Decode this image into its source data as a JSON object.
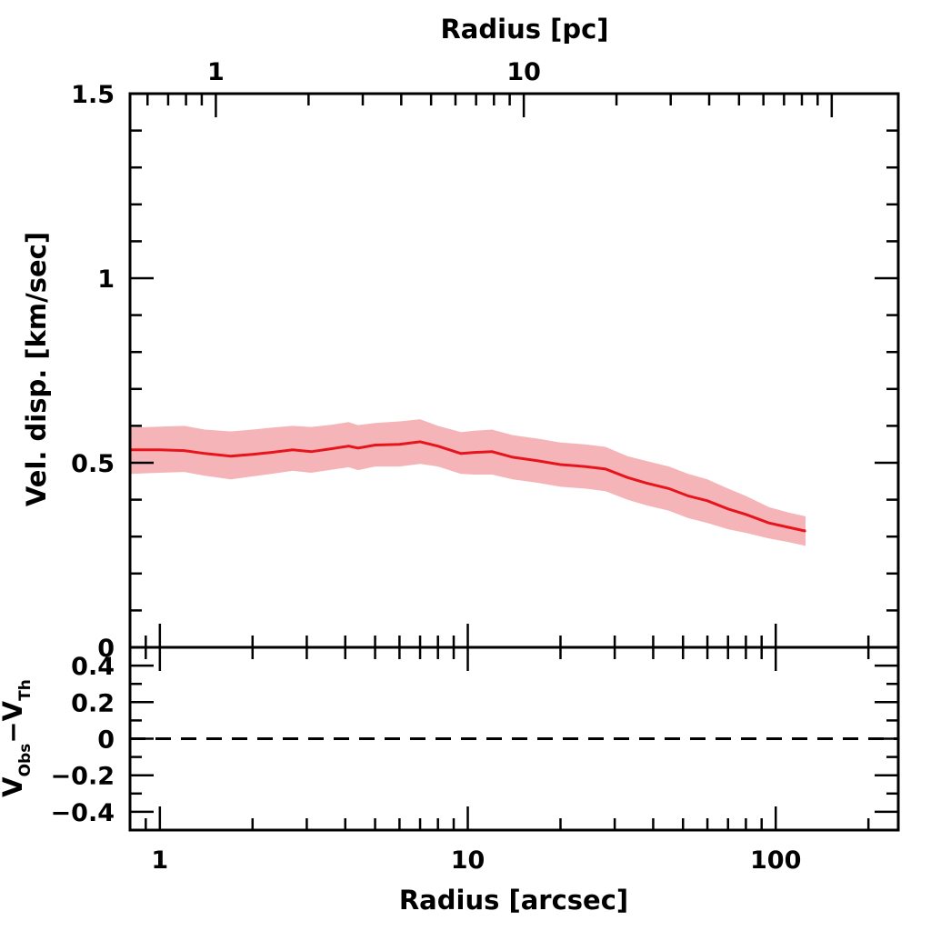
{
  "chart_data": {
    "type": "line",
    "x_scale": "log",
    "top_panel": {
      "xlabel_bottom": "Radius [arcsec]",
      "xlabel_top": "Radius [pc]",
      "ylabel": "Vel. disp. [km/sec]",
      "xlim": [
        0.8,
        250
      ],
      "ylim": [
        0,
        1.5
      ],
      "y_ticks": [
        0,
        0.5,
        1,
        1.5
      ],
      "y_tick_labels": [
        "0",
        "0.5",
        "1",
        "1.5"
      ],
      "top_x_ticks_pc": [
        1,
        10
      ],
      "top_x_tick_labels": [
        "1",
        "10"
      ],
      "top_x_tick_arcsec": [
        1.52,
        15.2
      ],
      "series": [
        {
          "line_color": "#e8141c",
          "band_color": "#f5b5b8",
          "x": [
            0.8,
            1.0,
            1.2,
            1.4,
            1.7,
            2.0,
            2.3,
            2.7,
            3.1,
            3.6,
            4.1,
            4.4,
            5.0,
            6.0,
            7.0,
            8.0,
            9.5,
            10.5,
            12.0,
            14.0,
            17.0,
            20.0,
            24.0,
            28.0,
            33.0,
            38.0,
            45.0,
            52.0,
            60.0,
            70.0,
            80.0,
            95.0,
            110.0,
            125.0
          ],
          "y": [
            0.535,
            0.535,
            0.533,
            0.525,
            0.518,
            0.523,
            0.528,
            0.535,
            0.53,
            0.538,
            0.545,
            0.54,
            0.548,
            0.55,
            0.557,
            0.545,
            0.525,
            0.528,
            0.53,
            0.515,
            0.505,
            0.495,
            0.49,
            0.483,
            0.46,
            0.445,
            0.43,
            0.41,
            0.397,
            0.375,
            0.36,
            0.337,
            0.325,
            0.315
          ],
          "y_upper": [
            0.595,
            0.598,
            0.6,
            0.59,
            0.585,
            0.59,
            0.595,
            0.6,
            0.597,
            0.603,
            0.61,
            0.602,
            0.608,
            0.612,
            0.618,
            0.6,
            0.583,
            0.587,
            0.59,
            0.575,
            0.565,
            0.555,
            0.55,
            0.543,
            0.518,
            0.505,
            0.49,
            0.47,
            0.455,
            0.43,
            0.41,
            0.38,
            0.365,
            0.355
          ],
          "y_lower": [
            0.47,
            0.473,
            0.475,
            0.465,
            0.455,
            0.463,
            0.47,
            0.478,
            0.473,
            0.481,
            0.488,
            0.48,
            0.49,
            0.49,
            0.497,
            0.49,
            0.47,
            0.468,
            0.468,
            0.455,
            0.445,
            0.435,
            0.43,
            0.423,
            0.4,
            0.385,
            0.37,
            0.35,
            0.337,
            0.32,
            0.31,
            0.295,
            0.285,
            0.275
          ]
        }
      ]
    },
    "bottom_panel": {
      "ylabel_main": "V",
      "ylabel_sub1": "Obs",
      "ylabel_dash": "−V",
      "ylabel_sub2": "Th",
      "ylim": [
        -0.5,
        0.5
      ],
      "y_ticks": [
        -0.4,
        -0.2,
        0,
        0.2,
        0.4
      ],
      "y_tick_labels": [
        "−0.4",
        "−0.2",
        "0",
        "0.2",
        "0.4"
      ],
      "x_ticks": [
        1,
        10,
        100
      ],
      "x_tick_labels": [
        "1",
        "10",
        "100"
      ],
      "reference_line_y": 0
    }
  }
}
